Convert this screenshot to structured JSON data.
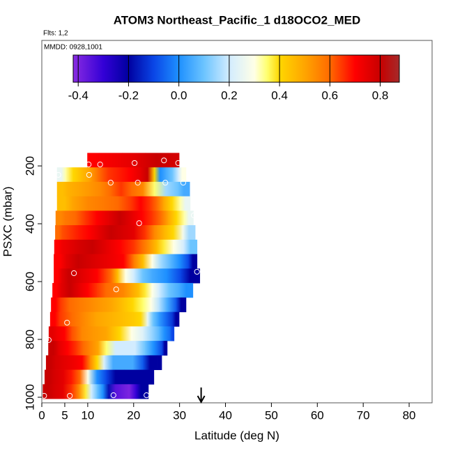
{
  "chart_data": {
    "type": "curtain",
    "title": "ATOM3 Northeast_Pacific_1 d18OCO2_MED",
    "annotations": [
      "Flts: 1,2",
      "MMDD: 0928,1001"
    ],
    "xlabel": "Latitude (deg N)",
    "ylabel": "PSXC (mbar)",
    "xlim": [
      0,
      85
    ],
    "xticks": [
      0,
      5,
      10,
      20,
      30,
      40,
      50,
      60,
      70,
      80
    ],
    "ylim": [
      1019.3,
      -234
    ],
    "yticks": [
      200,
      400,
      600,
      800,
      1000
    ],
    "row_height": 50,
    "rows": [
      {
        "pressure": 180,
        "lat": [
          9.9,
          15,
          20,
          25,
          29.9
        ],
        "values": [
          0.7,
          0.72,
          0.75,
          0.8,
          0.78
        ]
      },
      {
        "pressure": 230,
        "lat": [
          3.3,
          7,
          10,
          14,
          20,
          23,
          26,
          28,
          31.4
        ],
        "values": [
          0.25,
          0.4,
          0.5,
          0.65,
          0.7,
          0.8,
          0.0,
          0.1,
          0.3
        ]
      },
      {
        "pressure": 280,
        "lat": [
          3.3,
          8,
          13,
          17,
          22,
          27,
          32.2
        ],
        "values": [
          0.45,
          0.5,
          0.55,
          0.65,
          0.55,
          0.15,
          0.05
        ]
      },
      {
        "pressure": 330,
        "lat": [
          3.3,
          10,
          17,
          22,
          25,
          28,
          32.3
        ],
        "values": [
          0.45,
          0.55,
          0.6,
          0.7,
          0.6,
          0.4,
          0.25
        ]
      },
      {
        "pressure": 380,
        "lat": [
          3,
          7,
          12,
          17,
          22,
          26,
          29,
          33
        ],
        "values": [
          0.55,
          0.6,
          0.7,
          0.8,
          0.7,
          0.6,
          0.4,
          0.25
        ]
      },
      {
        "pressure": 430,
        "lat": [
          2.9,
          6,
          10,
          15,
          20,
          25,
          28,
          33.4
        ],
        "values": [
          0.6,
          0.65,
          0.7,
          0.8,
          0.75,
          0.55,
          0.4,
          0.15
        ]
      },
      {
        "pressure": 480,
        "lat": [
          2.7,
          6,
          10,
          18,
          22,
          25,
          28,
          33.8
        ],
        "values": [
          0.7,
          0.75,
          0.8,
          0.7,
          0.6,
          0.45,
          0.3,
          0.1
        ]
      },
      {
        "pressure": 530,
        "lat": [
          2.6,
          8,
          13,
          18,
          22,
          26,
          30,
          33.8
        ],
        "values": [
          0.7,
          0.8,
          0.75,
          0.7,
          0.45,
          0.15,
          0.0,
          -0.2
        ]
      },
      {
        "pressure": 580,
        "lat": [
          2.6,
          6,
          9,
          12,
          15,
          18,
          22,
          26,
          34.4
        ],
        "values": [
          0.7,
          0.8,
          0.75,
          0.7,
          0.6,
          0.3,
          0.1,
          0.0,
          -0.2
        ]
      },
      {
        "pressure": 630,
        "lat": [
          2.3,
          6,
          10,
          14,
          18,
          21,
          24,
          27,
          32.9
        ],
        "values": [
          0.7,
          0.8,
          0.7,
          0.6,
          0.55,
          0.45,
          0.3,
          0.1,
          0.0
        ]
      },
      {
        "pressure": 680,
        "lat": [
          2,
          6,
          10,
          15,
          20,
          24,
          27,
          31.4
        ],
        "values": [
          0.7,
          0.6,
          0.55,
          0.5,
          0.4,
          0.3,
          0.05,
          -0.2
        ]
      },
      {
        "pressure": 730,
        "lat": [
          1.8,
          6,
          12,
          18,
          22,
          24,
          27,
          29.9
        ],
        "values": [
          0.7,
          0.6,
          0.5,
          0.45,
          0.4,
          0.1,
          -0.05,
          -0.2
        ]
      },
      {
        "pressure": 780,
        "lat": [
          1.5,
          5,
          8,
          14,
          20,
          24,
          27,
          28.8
        ],
        "values": [
          0.75,
          0.7,
          0.55,
          0.5,
          0.3,
          0.15,
          0.0,
          -0.1
        ]
      },
      {
        "pressure": 830,
        "lat": [
          1.4,
          6,
          9,
          12,
          16,
          20,
          25,
          27.3
        ],
        "values": [
          0.8,
          0.7,
          0.6,
          0.5,
          0.2,
          0.2,
          0.0,
          -0.2
        ]
      },
      {
        "pressure": 880,
        "lat": [
          0.9,
          5,
          9,
          12,
          15,
          20,
          24,
          26.1
        ],
        "values": [
          0.8,
          0.75,
          0.7,
          0.4,
          0.05,
          0.05,
          -0.2,
          -0.2
        ]
      },
      {
        "pressure": 930,
        "lat": [
          0.6,
          5,
          8,
          12,
          16,
          20,
          24.4
        ],
        "values": [
          0.8,
          0.75,
          0.6,
          0.0,
          -0.2,
          -0.2,
          -0.2
        ]
      },
      {
        "pressure": 980,
        "lat": [
          0.2,
          5,
          8,
          11,
          13,
          16,
          19,
          22,
          23.2
        ],
        "values": [
          0.8,
          0.75,
          0.55,
          0.2,
          0.0,
          -0.35,
          -0.4,
          -0.2,
          -0.2
        ]
      }
    ],
    "points": {
      "lat": [
        10.2,
        12.7,
        20.2,
        26.6,
        29.7,
        3.6,
        10.3,
        15.0,
        20.9,
        26.9,
        30.8,
        33.1,
        21.2,
        33.8,
        7.0,
        16.2,
        5.5,
        1.5,
        0.5,
        6.1,
        15.6,
        22.8
      ],
      "pressure": [
        195,
        195,
        190,
        181,
        190,
        231,
        231,
        258,
        258,
        258,
        258,
        371,
        398,
        566,
        571,
        627,
        742,
        802,
        995,
        995,
        993,
        993
      ]
    },
    "arrow": {
      "lat": 34.7
    },
    "colorbar": {
      "lim": [
        -0.42,
        0.876
      ],
      "ticks": [
        -0.4,
        -0.2,
        {
          "value": 0,
          "label": "0.0"
        },
        0.2,
        0.4,
        0.6,
        0.8
      ],
      "colormap": {
        "values": [
          -0.42,
          -0.3,
          -0.2,
          -0.1,
          0.0,
          0.1,
          0.2,
          0.3,
          0.35,
          0.4,
          0.5,
          0.6,
          0.7,
          0.8,
          0.876
        ],
        "colors": [
          "#8a2be2",
          "#3300d6",
          "#0000a0",
          "#0a46e6",
          "#1e90ff",
          "#6cc4ff",
          "#d2ecff",
          "#ffffe6",
          "#ffff70",
          "#ffd700",
          "#ffa500",
          "#ff6a00",
          "#ff0000",
          "#c80000",
          "#a52a2a"
        ]
      }
    }
  }
}
